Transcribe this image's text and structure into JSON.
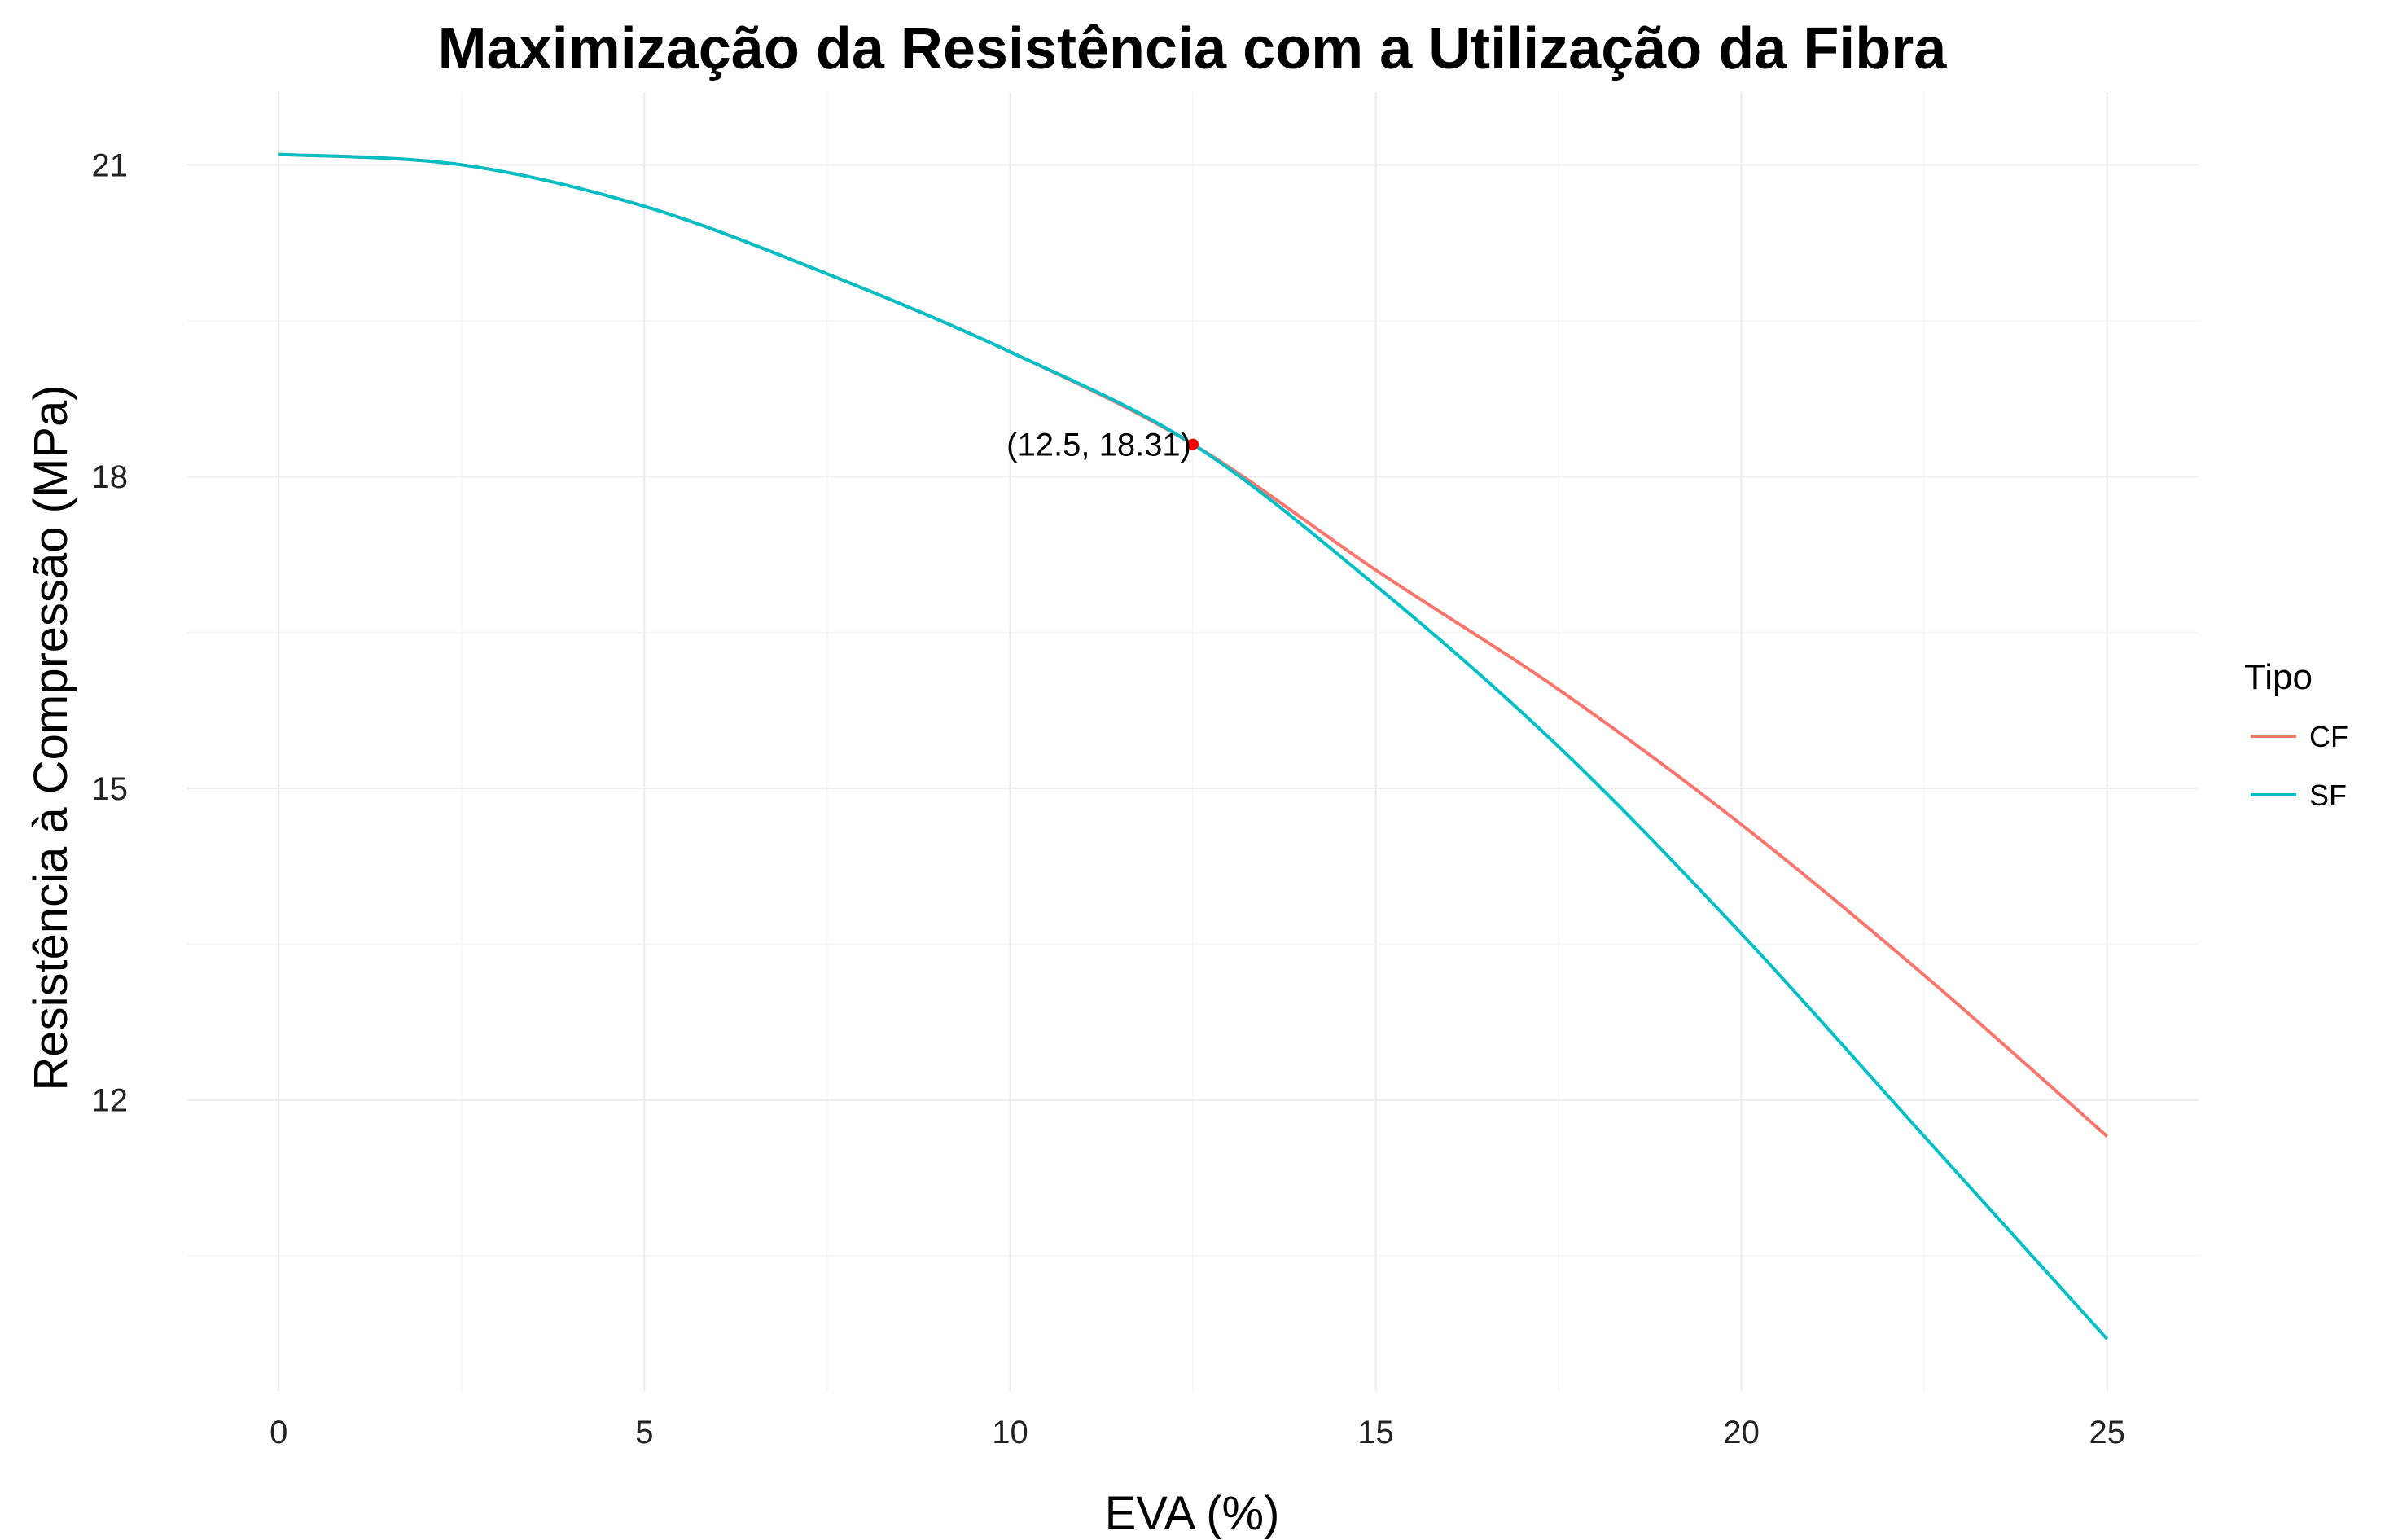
{
  "chart_data": {
    "type": "line",
    "title": "Maximização da Resistência com a Utilização da Fibra",
    "xlabel": "EVA (%)",
    "ylabel": "Resistência à Compressão (MPa)",
    "xlim": [
      -1.25,
      26.25
    ],
    "ylim": [
      9.2,
      21.7
    ],
    "x_ticks": [
      0,
      5,
      10,
      15,
      20,
      25
    ],
    "x_tick_labels": [
      "0",
      "5",
      "10",
      "15",
      "20",
      "25"
    ],
    "y_ticks": [
      12,
      15,
      18,
      21
    ],
    "y_tick_labels": [
      "12",
      "15",
      "18",
      "21"
    ],
    "grid": true,
    "legend": {
      "title": "Tipo",
      "position": "right"
    },
    "series": [
      {
        "name": "CF",
        "color": "#F8766D",
        "x": [
          0,
          2.5,
          5,
          7.5,
          10,
          12.5,
          15,
          17.5,
          20,
          22.5,
          25
        ],
        "y": [
          21.1,
          21.0,
          20.6,
          19.95,
          19.2,
          18.31,
          17.1,
          15.95,
          14.65,
          13.2,
          11.65
        ]
      },
      {
        "name": "SF",
        "color": "#00BFC4",
        "x": [
          0,
          2.5,
          5,
          7.5,
          10,
          12.5,
          15,
          17.5,
          20,
          22.5,
          25
        ],
        "y": [
          21.1,
          21.0,
          20.6,
          19.95,
          19.2,
          18.31,
          16.95,
          15.4,
          13.6,
          11.65,
          9.7
        ]
      }
    ],
    "annotations": [
      {
        "x": 12.5,
        "y": 18.31,
        "label": "(12.5, 18.31)",
        "color": "#FF0000"
      }
    ]
  }
}
